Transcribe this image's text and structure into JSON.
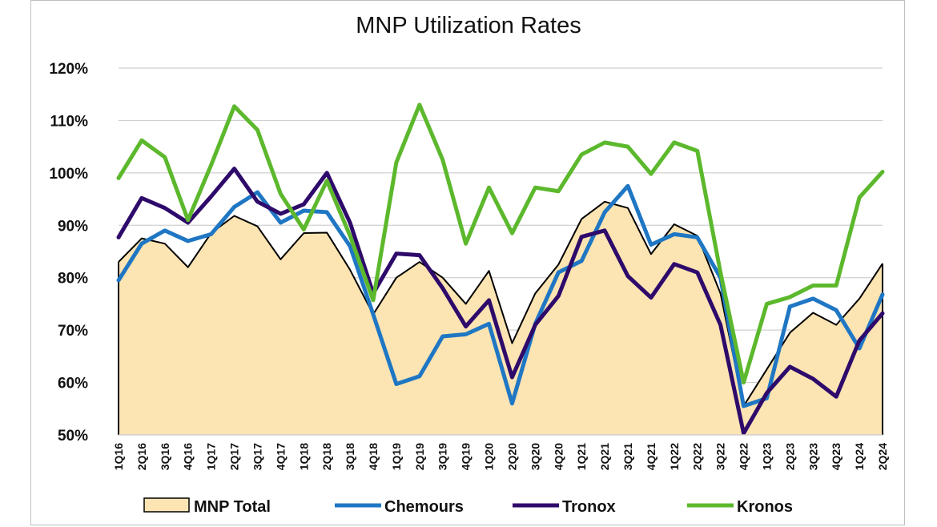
{
  "chart_data": {
    "type": "area",
    "title": "MNP Utilization Rates",
    "xlabel": "",
    "ylabel": "",
    "ylim": [
      0.5,
      1.2
    ],
    "yticks": [
      0.5,
      0.6,
      0.7,
      0.8,
      0.9,
      1.0,
      1.1,
      1.2
    ],
    "ytick_labels": [
      "50%",
      "60%",
      "70%",
      "80%",
      "90%",
      "100%",
      "110%",
      "120%"
    ],
    "grid": "horizontal",
    "legend_position": "bottom",
    "categories": [
      "1Q16",
      "2Q16",
      "3Q16",
      "4Q16",
      "1Q17",
      "2Q17",
      "3Q17",
      "4Q17",
      "1Q18",
      "2Q18",
      "3Q18",
      "4Q18",
      "1Q19",
      "2Q19",
      "3Q19",
      "4Q19",
      "1Q20",
      "2Q20",
      "3Q20",
      "4Q20",
      "1Q21",
      "2Q21",
      "3Q21",
      "4Q21",
      "1Q22",
      "2Q22",
      "3Q22",
      "4Q22",
      "1Q23",
      "2Q23",
      "3Q23",
      "4Q23",
      "1Q24",
      "2Q24"
    ],
    "series": [
      {
        "name": "MNP Total",
        "kind": "area",
        "color": "#fce4b3",
        "edge_color": "#000000",
        "values": [
          0.83,
          0.875,
          0.865,
          0.82,
          0.885,
          0.918,
          0.898,
          0.835,
          0.885,
          0.886,
          0.815,
          0.73,
          0.8,
          0.83,
          0.8,
          0.75,
          0.813,
          0.675,
          0.77,
          0.825,
          0.912,
          0.945,
          0.933,
          0.845,
          0.902,
          0.88,
          0.77,
          0.555,
          0.625,
          0.695,
          0.733,
          0.71,
          0.76,
          0.827
        ]
      },
      {
        "name": "Chemours",
        "kind": "line",
        "color": "#1f77c4",
        "values": [
          0.795,
          0.865,
          0.89,
          0.87,
          0.883,
          0.935,
          0.963,
          0.905,
          0.928,
          0.925,
          0.86,
          0.73,
          0.597,
          0.612,
          0.688,
          0.692,
          0.712,
          0.56,
          0.712,
          0.81,
          0.832,
          0.925,
          0.975,
          0.863,
          0.883,
          0.877,
          0.8,
          0.555,
          0.57,
          0.745,
          0.76,
          0.738,
          0.665,
          0.768
        ]
      },
      {
        "name": "Tronox",
        "kind": "line",
        "color": "#2e0a6b",
        "values": [
          0.877,
          0.952,
          0.933,
          0.905,
          0.955,
          1.008,
          0.945,
          0.922,
          0.94,
          1.0,
          0.905,
          0.77,
          0.846,
          0.843,
          0.78,
          0.707,
          0.757,
          0.61,
          0.71,
          0.765,
          0.878,
          0.89,
          0.803,
          0.762,
          0.826,
          0.81,
          0.71,
          0.503,
          0.58,
          0.63,
          0.607,
          0.573,
          0.68,
          0.732
        ]
      },
      {
        "name": "Kronos",
        "kind": "line",
        "color": "#5cb82c",
        "values": [
          0.99,
          1.062,
          1.03,
          0.91,
          1.015,
          1.127,
          1.082,
          0.96,
          0.892,
          0.985,
          0.88,
          0.757,
          1.02,
          1.13,
          1.025,
          0.865,
          0.972,
          0.885,
          0.972,
          0.965,
          1.035,
          1.058,
          1.05,
          0.998,
          1.058,
          1.042,
          0.81,
          0.6,
          0.75,
          0.763,
          0.785,
          0.785,
          0.953,
          1.002
        ]
      }
    ]
  }
}
